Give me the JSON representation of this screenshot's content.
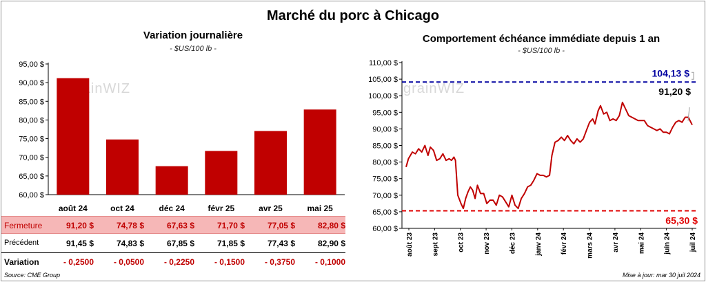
{
  "title": "Marché du porc à Chicago",
  "left_chart": {
    "title": "Variation  journalière",
    "unit": "- $US/100 lb -",
    "watermark": "grainWIZ"
  },
  "right_chart": {
    "title": "Comportement  échéance immédiate depuis 1 an",
    "unit": "- $US/100 lb -",
    "watermark": "grainWIZ",
    "high_label": "104,13 $",
    "low_label": "65,30 $",
    "last_label": "91,20 $"
  },
  "table": {
    "fermeture_label": "Fermeture",
    "precedent_label": "Précédent",
    "variation_label": "Variation",
    "fermeture": [
      "91,20  $",
      "74,78  $",
      "67,63  $",
      "71,70  $",
      "77,05  $",
      "82,80  $"
    ],
    "precedent": [
      "91,45  $",
      "74,83  $",
      "67,85  $",
      "71,85  $",
      "77,43  $",
      "82,90  $"
    ],
    "variation": [
      "- 0,2500",
      "- 0,0500",
      "- 0,2250",
      "- 0,1500",
      "- 0,3750",
      "- 0,1000"
    ]
  },
  "footer": {
    "source": "Source: CME Group",
    "updated": "Mise à jour: mar 30 juil 2024"
  },
  "colors": {
    "bar": "#c00000",
    "line": "#c00000",
    "high": "#0000a0",
    "low": "#e00000",
    "fermeture_bg": "#f6b7b7"
  },
  "chart_data": [
    {
      "type": "bar",
      "title": "Variation  journalière",
      "categories": [
        "août 24",
        "oct 24",
        "déc 24",
        "févr 25",
        "avr 25",
        "mai 25"
      ],
      "values": [
        91.2,
        74.78,
        67.63,
        71.7,
        77.05,
        82.8
      ],
      "ylim": [
        60,
        95
      ],
      "yticks": [
        60,
        65,
        70,
        75,
        80,
        85,
        90,
        95
      ],
      "ytick_labels": [
        "60,00 $",
        "65,00 $",
        "70,00 $",
        "75,00 $",
        "80,00 $",
        "85,00 $",
        "90,00 $",
        "95,00 $"
      ],
      "grid": false
    },
    {
      "type": "line",
      "title": "Comportement  échéance immédiate depuis 1 an",
      "ylim": [
        60,
        110
      ],
      "yticks": [
        60,
        65,
        70,
        75,
        80,
        85,
        90,
        95,
        100,
        105,
        110
      ],
      "ytick_labels": [
        "60,00 $",
        "65,00 $",
        "70,00 $",
        "75,00 $",
        "80,00 $",
        "85,00 $",
        "90,00 $",
        "95,00 $",
        "100,00 $",
        "105,00 $",
        "110,00 $"
      ],
      "xtick_labels": [
        "août 23",
        "sept 23",
        "oct 23",
        "nov 23",
        "déc 23",
        "janv 24",
        "févr 24",
        "mars 24",
        "avr 24",
        "mai 24",
        "juin 24",
        "juil 24"
      ],
      "x_range": [
        "2023-07-31",
        "2024-07-30"
      ],
      "reference_lines": [
        {
          "value": 104.13,
          "label": "104,13 $",
          "color": "#0000a0"
        },
        {
          "value": 65.3,
          "label": "65,30 $",
          "color": "#e00000"
        }
      ],
      "series": [
        {
          "x": [
            "2023-07-31",
            "2023-08-03",
            "2023-08-08",
            "2023-08-12",
            "2023-08-16",
            "2023-08-20",
            "2023-08-24",
            "2023-08-28",
            "2023-08-31",
            "2023-09-04",
            "2023-09-08",
            "2023-09-12",
            "2023-09-16",
            "2023-09-20",
            "2023-09-24",
            "2023-09-27",
            "2023-09-30",
            "2023-10-02",
            "2023-10-05",
            "2023-10-09",
            "2023-10-12",
            "2023-10-15",
            "2023-10-18",
            "2023-10-21",
            "2023-10-24",
            "2023-10-27",
            "2023-10-30",
            "2023-11-03",
            "2023-11-07",
            "2023-11-11",
            "2023-11-15",
            "2023-11-19",
            "2023-11-23",
            "2023-11-27",
            "2023-12-01",
            "2023-12-05",
            "2023-12-09",
            "2023-12-13",
            "2023-12-17",
            "2023-12-21",
            "2023-12-25",
            "2023-12-29",
            "2024-01-02",
            "2024-01-06",
            "2024-01-10",
            "2024-01-14",
            "2024-01-18",
            "2024-01-22",
            "2024-01-26",
            "2024-01-30",
            "2024-02-02",
            "2024-02-06",
            "2024-02-10",
            "2024-02-14",
            "2024-02-18",
            "2024-02-22",
            "2024-02-26",
            "2024-03-01",
            "2024-03-05",
            "2024-03-09",
            "2024-03-13",
            "2024-03-17",
            "2024-03-21",
            "2024-03-25",
            "2024-03-28",
            "2024-04-01",
            "2024-04-04",
            "2024-04-08",
            "2024-04-12",
            "2024-04-16",
            "2024-04-20",
            "2024-04-24",
            "2024-04-28",
            "2024-05-02",
            "2024-05-06",
            "2024-05-10",
            "2024-05-14",
            "2024-05-18",
            "2024-05-22",
            "2024-05-26",
            "2024-05-30",
            "2024-06-03",
            "2024-06-07",
            "2024-06-11",
            "2024-06-15",
            "2024-06-19",
            "2024-06-23",
            "2024-06-27",
            "2024-07-01",
            "2024-07-05",
            "2024-07-09",
            "2024-07-13",
            "2024-07-17",
            "2024-07-21",
            "2024-07-25",
            "2024-07-30"
          ],
          "y": [
            78.5,
            81.0,
            83.0,
            82.5,
            84.0,
            83.0,
            85.0,
            82.0,
            84.5,
            83.5,
            80.5,
            81.0,
            82.5,
            80.5,
            81.0,
            80.5,
            81.5,
            80.5,
            70.0,
            67.5,
            66.0,
            69.0,
            71.0,
            72.5,
            71.5,
            69.0,
            73.0,
            70.5,
            70.5,
            67.5,
            68.5,
            68.5,
            67.0,
            70.0,
            69.5,
            68.0,
            66.5,
            70.0,
            67.0,
            66.0,
            69.0,
            70.5,
            72.5,
            73.0,
            74.5,
            76.5,
            76.0,
            76.0,
            75.5,
            76.0,
            82.0,
            86.0,
            86.5,
            87.5,
            86.5,
            88.0,
            86.5,
            85.5,
            87.0,
            86.0,
            87.0,
            89.5,
            92.0,
            93.0,
            91.5,
            95.5,
            97.0,
            94.5,
            95.0,
            92.5,
            93.0,
            92.5,
            94.0,
            98.0,
            96.0,
            94.0,
            93.5,
            93.0,
            92.5,
            92.5,
            92.5,
            91.0,
            90.5,
            90.0,
            89.5,
            90.0,
            89.0,
            89.0,
            88.5,
            90.5,
            92.0,
            92.5,
            92.0,
            93.5,
            93.5,
            91.2
          ]
        }
      ],
      "grid": false
    }
  ]
}
